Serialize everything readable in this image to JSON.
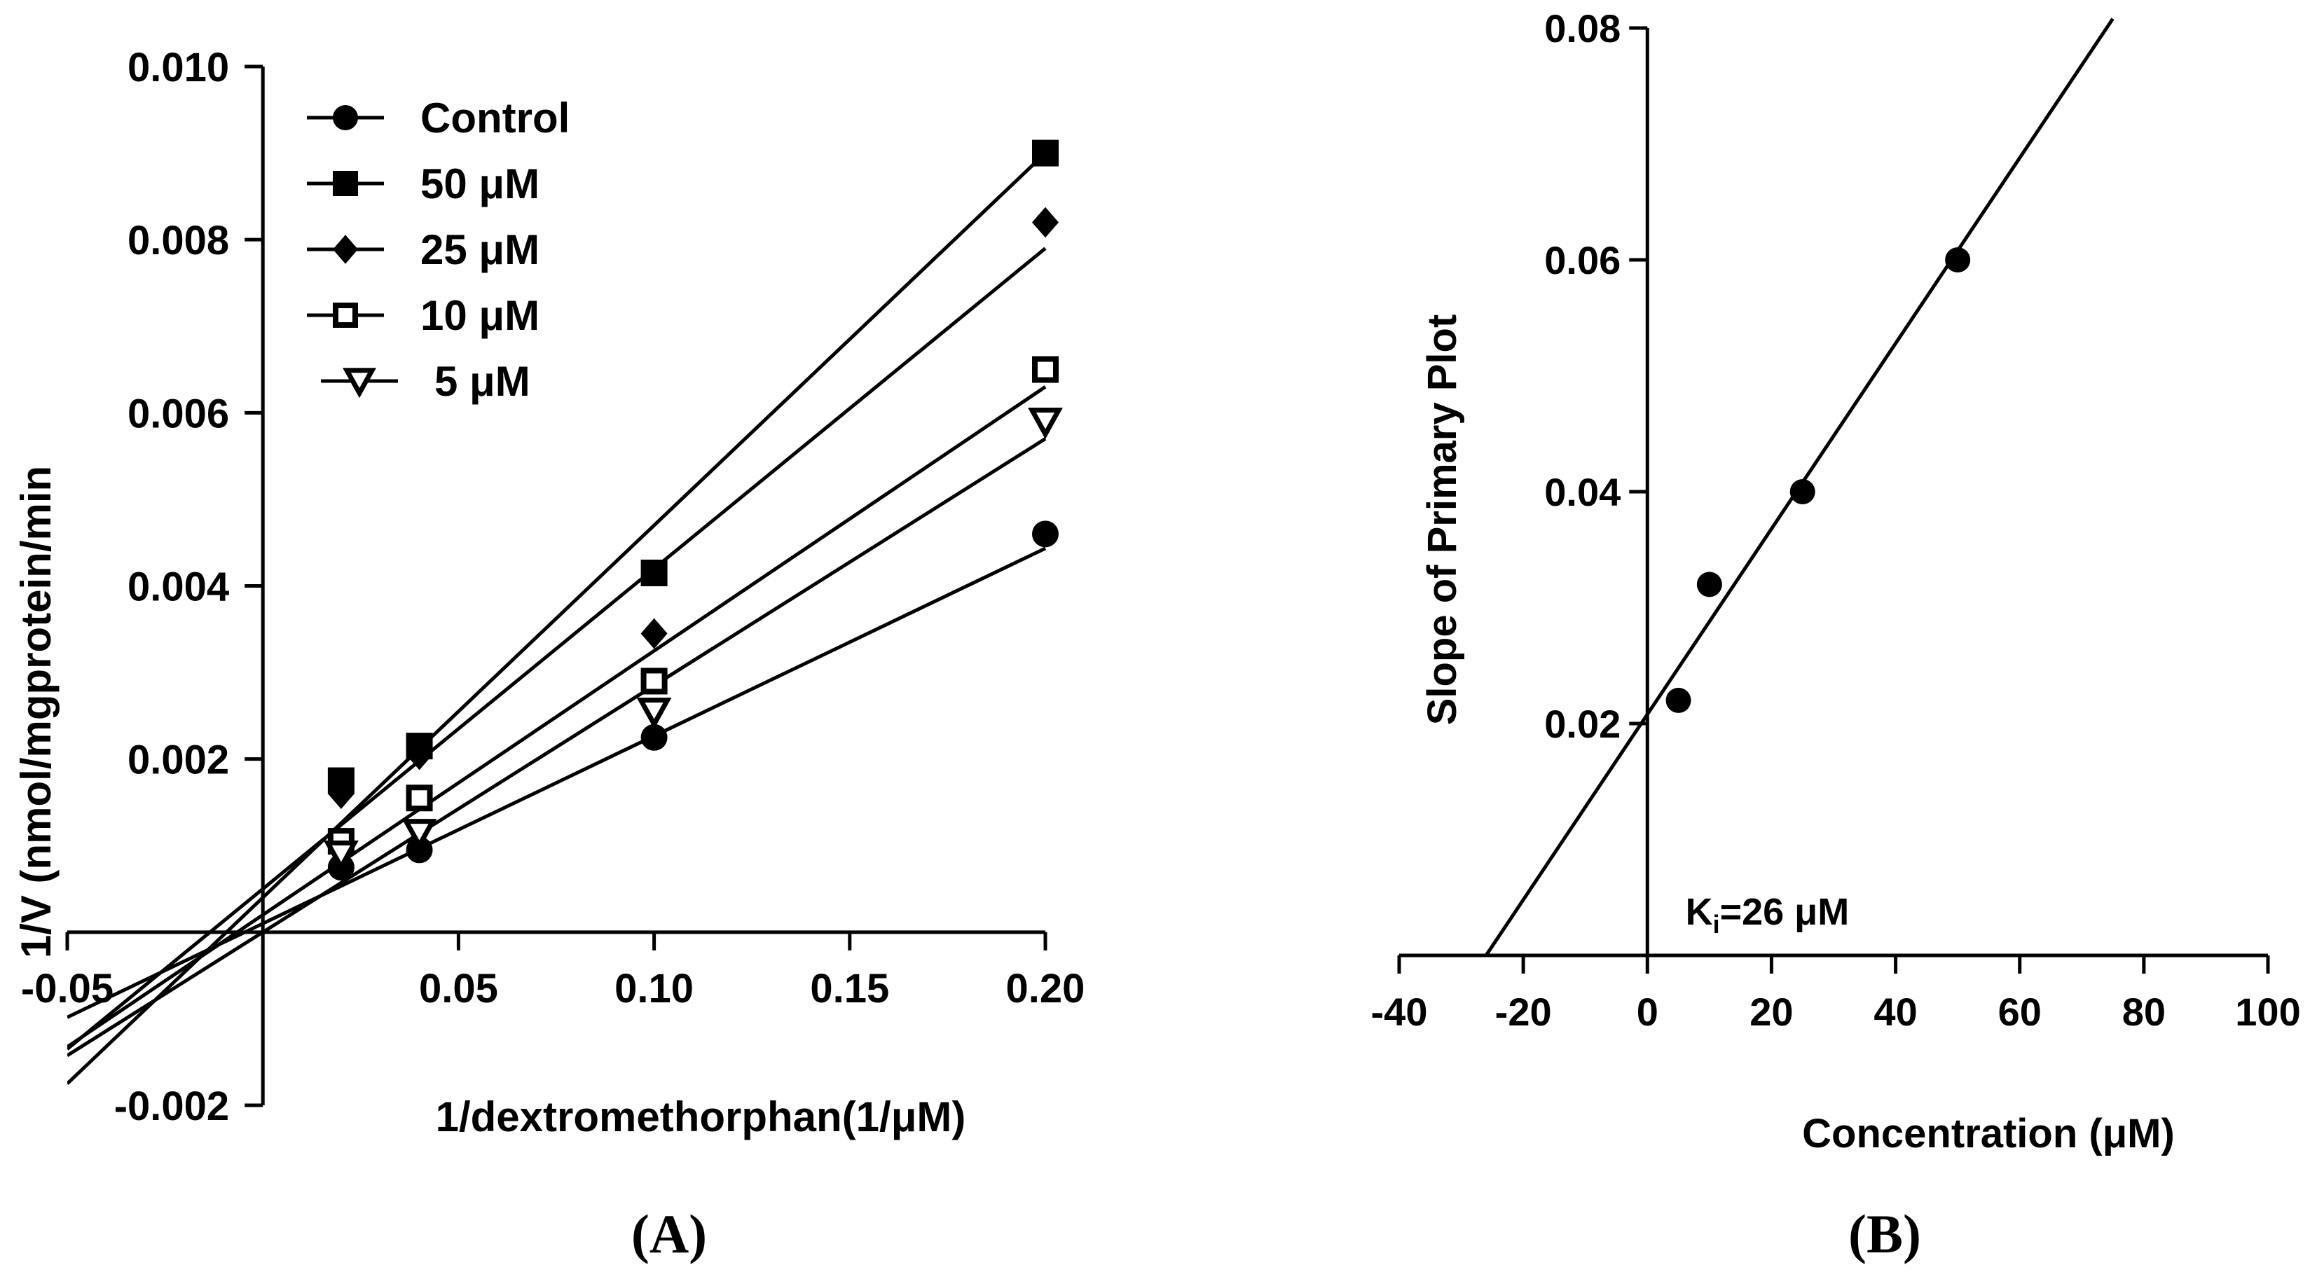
{
  "chart_data": [
    {
      "type": "line",
      "panel_label": "(A)",
      "title": "",
      "xlabel": "1/dextromethorphan(1/μM)",
      "ylabel": "1/V (nmol/mgprotein/min",
      "xlim": [
        -0.05,
        0.2
      ],
      "ylim": [
        -0.002,
        0.01
      ],
      "x_ticks": [
        -0.05,
        0.05,
        0.1,
        0.15,
        0.2
      ],
      "x_tick_labels": [
        "-0.05",
        "0.05",
        "0.10",
        "0.15",
        "0.20"
      ],
      "y_ticks": [
        -0.002,
        0.002,
        0.004,
        0.006,
        0.008,
        0.01
      ],
      "y_tick_labels": [
        "-0.002",
        "0.002",
        "0.004",
        "0.006",
        "0.008",
        "0.010"
      ],
      "legend_position": "top-left",
      "series": [
        {
          "name": "Control",
          "marker": "circle",
          "x": [
            0.02,
            0.04,
            0.1,
            0.2
          ],
          "y": [
            0.00075,
            0.00095,
            0.00225,
            0.0046
          ],
          "fit": {
            "slope": 0.02167,
            "intercept": 0.0001
          }
        },
        {
          "name": "50 μM",
          "marker": "square",
          "x": [
            0.02,
            0.04,
            0.1,
            0.2
          ],
          "y": [
            0.00175,
            0.00215,
            0.00415,
            0.009
          ],
          "fit": {
            "slope": 0.043,
            "intercept": 0.0004
          }
        },
        {
          "name": "25 μM",
          "marker": "diamond",
          "x": [
            0.02,
            0.04,
            0.1,
            0.2
          ],
          "y": [
            0.0016,
            0.00205,
            0.00345,
            0.0082
          ],
          "fit": {
            "slope": 0.037,
            "intercept": 0.0005
          }
        },
        {
          "name": "10 μM",
          "marker": "open-square",
          "x": [
            0.02,
            0.04,
            0.1,
            0.2
          ],
          "y": [
            0.00105,
            0.00155,
            0.0029,
            0.0065
          ],
          "fit": {
            "slope": 0.0305,
            "intercept": 0.0002
          }
        },
        {
          "name": "5 μM",
          "marker": "open-triangle-down",
          "x": [
            0.02,
            0.04,
            0.1,
            0.2
          ],
          "y": [
            0.0009,
            0.00115,
            0.00255,
            0.0059
          ],
          "fit": {
            "slope": 0.0285,
            "intercept": 0.0
          }
        }
      ]
    },
    {
      "type": "scatter",
      "panel_label": "(B)",
      "title": "",
      "xlabel": "Concentration (μM)",
      "ylabel": "Slope of Primary Plot",
      "xlim": [
        -40,
        100
      ],
      "ylim": [
        0,
        0.08
      ],
      "x_ticks": [
        -40,
        -20,
        0,
        20,
        40,
        60,
        80,
        100
      ],
      "x_tick_labels": [
        "-40",
        "-20",
        "0",
        "20",
        "40",
        "60",
        "80",
        "100"
      ],
      "y_ticks": [
        0.02,
        0.04,
        0.06,
        0.08
      ],
      "y_tick_labels": [
        "0.02",
        "0.04",
        "0.06",
        "0.08"
      ],
      "annotation": {
        "prefix": "K",
        "subscript": "i",
        "text": "=26 μM",
        "x": 5,
        "y": 0.0035
      },
      "series": [
        {
          "name": "Slope",
          "marker": "circle",
          "x": [
            5,
            10,
            25,
            50
          ],
          "y": [
            0.022,
            0.032,
            0.04,
            0.06
          ],
          "fit": {
            "slope": 0.0008,
            "intercept": 0.0208,
            "x_range": [
              -26,
              75
            ]
          }
        }
      ]
    }
  ]
}
